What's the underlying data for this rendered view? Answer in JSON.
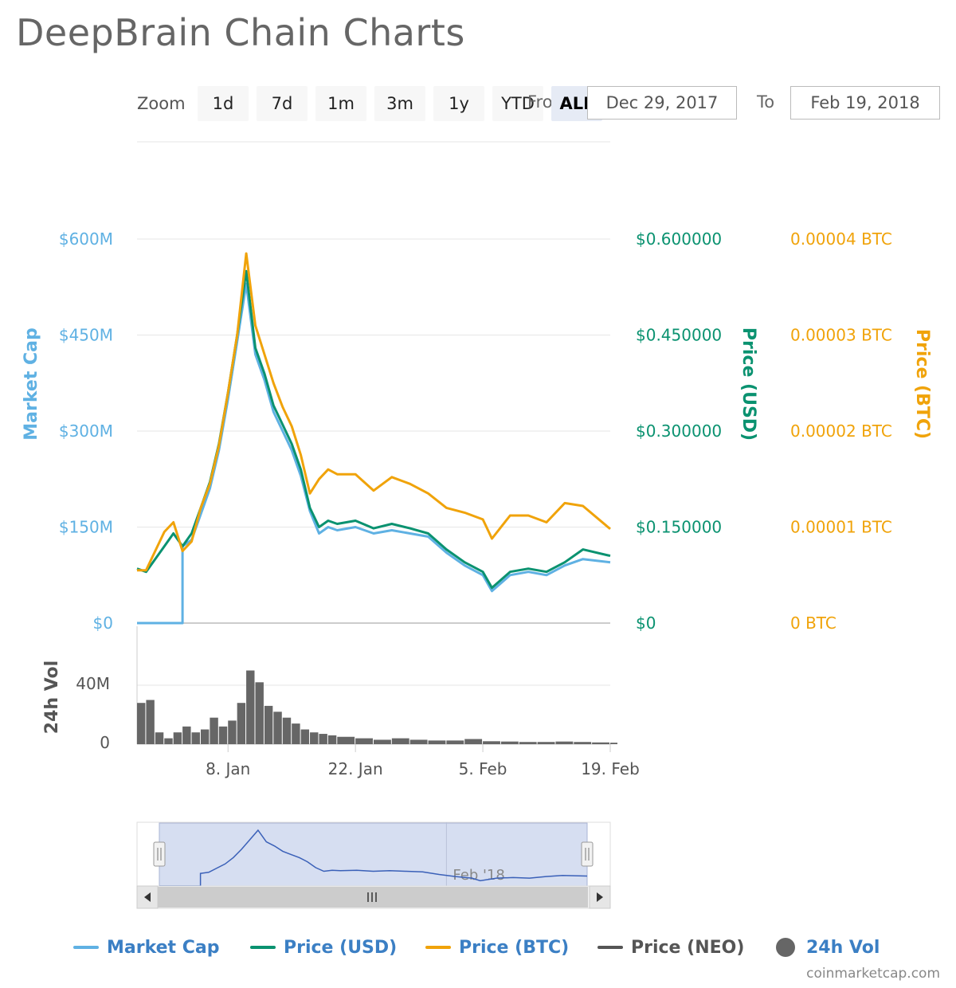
{
  "page": {
    "title": "DeepBrain Chain Charts"
  },
  "zoom": {
    "label": "Zoom",
    "buttons": [
      "1d",
      "7d",
      "1m",
      "3m",
      "1y",
      "YTD",
      "ALL"
    ],
    "active": "ALL"
  },
  "range": {
    "from_label": "From",
    "to_label": "To",
    "from_value": "Dec 29, 2017",
    "to_value": "Feb 19, 2018"
  },
  "legend": {
    "items": [
      {
        "name": "Market Cap",
        "color": "#5fb1e3",
        "marker": "line"
      },
      {
        "name": "Price (USD)",
        "color": "#0a9270",
        "marker": "line"
      },
      {
        "name": "Price (BTC)",
        "color": "#f0a30a",
        "marker": "line"
      },
      {
        "name": "Price (NEO)",
        "color": "#555555",
        "marker": "line"
      },
      {
        "name": "24h Vol",
        "color": "#666666",
        "marker": "dot"
      }
    ]
  },
  "credits": "coinmarketcap.com",
  "chart_data": {
    "type": "line",
    "x_range": [
      "2017-12-29",
      "2018-02-19"
    ],
    "x_ticks": [
      {
        "label": "8. Jan",
        "date": "2018-01-08"
      },
      {
        "label": "22. Jan",
        "date": "2018-01-22"
      },
      {
        "label": "5. Feb",
        "date": "2018-02-05"
      },
      {
        "label": "19. Feb",
        "date": "2018-02-19"
      }
    ],
    "axes": {
      "market_cap": {
        "title": "Market Cap",
        "ticks": [
          "$0",
          "$150M",
          "$300M",
          "$450M",
          "$600M"
        ],
        "range": [
          0,
          600000000
        ],
        "color": "#5fb1e3"
      },
      "price_usd": {
        "title": "Price (USD)",
        "ticks": [
          "$0",
          "$0.150000",
          "$0.300000",
          "$0.450000",
          "$0.600000"
        ],
        "range": [
          0,
          0.6
        ],
        "color": "#0a9270"
      },
      "price_btc": {
        "title": "Price (BTC)",
        "ticks": [
          "0 BTC",
          "0.00001 BTC",
          "0.00002 BTC",
          "0.00003 BTC",
          "0.00004 BTC"
        ],
        "range": [
          0,
          4e-05
        ],
        "color": "#f0a30a"
      },
      "volume": {
        "title": "24h Vol",
        "ticks": [
          "0",
          "40M"
        ],
        "range": [
          0,
          40000000
        ]
      }
    },
    "grid": true,
    "navigator": {
      "label": "Feb '18",
      "x_range": [
        "2017-12-29",
        "2018-02-19"
      ]
    },
    "series": [
      {
        "name": "Market Cap",
        "axis": "market_cap",
        "color": "#5fb1e3",
        "points": [
          [
            "2017-12-29",
            0
          ],
          [
            "2018-01-03",
            0
          ],
          [
            "2018-01-03",
            120000000
          ],
          [
            "2018-01-04",
            130000000
          ],
          [
            "2018-01-05",
            170000000
          ],
          [
            "2018-01-06",
            210000000
          ],
          [
            "2018-01-07",
            270000000
          ],
          [
            "2018-01-08",
            350000000
          ],
          [
            "2018-01-09",
            440000000
          ],
          [
            "2018-01-10",
            530000000
          ],
          [
            "2018-01-11",
            420000000
          ],
          [
            "2018-01-12",
            380000000
          ],
          [
            "2018-01-13",
            330000000
          ],
          [
            "2018-01-14",
            300000000
          ],
          [
            "2018-01-15",
            270000000
          ],
          [
            "2018-01-16",
            230000000
          ],
          [
            "2018-01-17",
            175000000
          ],
          [
            "2018-01-18",
            140000000
          ],
          [
            "2018-01-19",
            150000000
          ],
          [
            "2018-01-20",
            145000000
          ],
          [
            "2018-01-22",
            150000000
          ],
          [
            "2018-01-24",
            140000000
          ],
          [
            "2018-01-26",
            145000000
          ],
          [
            "2018-01-28",
            140000000
          ],
          [
            "2018-01-30",
            135000000
          ],
          [
            "2018-02-01",
            110000000
          ],
          [
            "2018-02-03",
            90000000
          ],
          [
            "2018-02-05",
            75000000
          ],
          [
            "2018-02-06",
            50000000
          ],
          [
            "2018-02-08",
            75000000
          ],
          [
            "2018-02-10",
            80000000
          ],
          [
            "2018-02-12",
            75000000
          ],
          [
            "2018-02-14",
            90000000
          ],
          [
            "2018-02-16",
            100000000
          ],
          [
            "2018-02-19",
            95000000
          ]
        ]
      },
      {
        "name": "Price (USD)",
        "axis": "price_usd",
        "color": "#0a9270",
        "points": [
          [
            "2017-12-29",
            0.085
          ],
          [
            "2017-12-30",
            0.08
          ],
          [
            "2017-12-31",
            0.1
          ],
          [
            "2018-01-01",
            0.12
          ],
          [
            "2018-01-02",
            0.14
          ],
          [
            "2018-01-03",
            0.12
          ],
          [
            "2018-01-04",
            0.14
          ],
          [
            "2018-01-05",
            0.18
          ],
          [
            "2018-01-06",
            0.22
          ],
          [
            "2018-01-07",
            0.28
          ],
          [
            "2018-01-08",
            0.36
          ],
          [
            "2018-01-09",
            0.45
          ],
          [
            "2018-01-10",
            0.55
          ],
          [
            "2018-01-11",
            0.43
          ],
          [
            "2018-01-12",
            0.39
          ],
          [
            "2018-01-13",
            0.34
          ],
          [
            "2018-01-14",
            0.31
          ],
          [
            "2018-01-15",
            0.28
          ],
          [
            "2018-01-16",
            0.24
          ],
          [
            "2018-01-17",
            0.18
          ],
          [
            "2018-01-18",
            0.15
          ],
          [
            "2018-01-19",
            0.16
          ],
          [
            "2018-01-20",
            0.155
          ],
          [
            "2018-01-22",
            0.16
          ],
          [
            "2018-01-24",
            0.148
          ],
          [
            "2018-01-26",
            0.155
          ],
          [
            "2018-01-28",
            0.148
          ],
          [
            "2018-01-30",
            0.14
          ],
          [
            "2018-02-01",
            0.115
          ],
          [
            "2018-02-03",
            0.095
          ],
          [
            "2018-02-05",
            0.08
          ],
          [
            "2018-02-06",
            0.055
          ],
          [
            "2018-02-08",
            0.08
          ],
          [
            "2018-02-10",
            0.085
          ],
          [
            "2018-02-12",
            0.08
          ],
          [
            "2018-02-14",
            0.095
          ],
          [
            "2018-02-16",
            0.115
          ],
          [
            "2018-02-19",
            0.105
          ]
        ]
      },
      {
        "name": "Price (BTC)",
        "axis": "price_btc",
        "color": "#f0a30a",
        "points": [
          [
            "2017-12-29",
            5.5e-06
          ],
          [
            "2017-12-30",
            5.5e-06
          ],
          [
            "2017-12-31",
            7.5e-06
          ],
          [
            "2018-01-01",
            9.5e-06
          ],
          [
            "2018-01-02",
            1.05e-05
          ],
          [
            "2018-01-03",
            7.5e-06
          ],
          [
            "2018-01-04",
            8.5e-06
          ],
          [
            "2018-01-05",
            1.2e-05
          ],
          [
            "2018-01-06",
            1.45e-05
          ],
          [
            "2018-01-07",
            1.85e-05
          ],
          [
            "2018-01-08",
            2.4e-05
          ],
          [
            "2018-01-09",
            3e-05
          ],
          [
            "2018-01-10",
            3.85e-05
          ],
          [
            "2018-01-11",
            3.1e-05
          ],
          [
            "2018-01-12",
            2.8e-05
          ],
          [
            "2018-01-13",
            2.5e-05
          ],
          [
            "2018-01-14",
            2.25e-05
          ],
          [
            "2018-01-15",
            2.05e-05
          ],
          [
            "2018-01-16",
            1.75e-05
          ],
          [
            "2018-01-17",
            1.35e-05
          ],
          [
            "2018-01-18",
            1.5e-05
          ],
          [
            "2018-01-19",
            1.6e-05
          ],
          [
            "2018-01-20",
            1.55e-05
          ],
          [
            "2018-01-22",
            1.55e-05
          ],
          [
            "2018-01-24",
            1.38e-05
          ],
          [
            "2018-01-26",
            1.52e-05
          ],
          [
            "2018-01-28",
            1.45e-05
          ],
          [
            "2018-01-30",
            1.35e-05
          ],
          [
            "2018-02-01",
            1.2e-05
          ],
          [
            "2018-02-03",
            1.15e-05
          ],
          [
            "2018-02-05",
            1.08e-05
          ],
          [
            "2018-02-06",
            8.8e-06
          ],
          [
            "2018-02-08",
            1.12e-05
          ],
          [
            "2018-02-10",
            1.12e-05
          ],
          [
            "2018-02-12",
            1.05e-05
          ],
          [
            "2018-02-14",
            1.25e-05
          ],
          [
            "2018-02-16",
            1.22e-05
          ],
          [
            "2018-02-19",
            9.8e-06
          ]
        ]
      },
      {
        "name": "24h Vol",
        "axis": "volume",
        "color": "#666666",
        "points": [
          [
            "2017-12-29",
            28000000
          ],
          [
            "2017-12-30",
            30000000
          ],
          [
            "2017-12-31",
            8000000
          ],
          [
            "2018-01-01",
            4000000
          ],
          [
            "2018-01-02",
            8000000
          ],
          [
            "2018-01-03",
            12000000
          ],
          [
            "2018-01-04",
            8000000
          ],
          [
            "2018-01-05",
            10000000
          ],
          [
            "2018-01-06",
            18000000
          ],
          [
            "2018-01-07",
            12000000
          ],
          [
            "2018-01-08",
            16000000
          ],
          [
            "2018-01-09",
            28000000
          ],
          [
            "2018-01-10",
            50000000
          ],
          [
            "2018-01-11",
            42000000
          ],
          [
            "2018-01-12",
            26000000
          ],
          [
            "2018-01-13",
            22000000
          ],
          [
            "2018-01-14",
            18000000
          ],
          [
            "2018-01-15",
            14000000
          ],
          [
            "2018-01-16",
            10000000
          ],
          [
            "2018-01-17",
            8000000
          ],
          [
            "2018-01-18",
            7000000
          ],
          [
            "2018-01-19",
            6000000
          ],
          [
            "2018-01-20",
            5000000
          ],
          [
            "2018-01-22",
            4000000
          ],
          [
            "2018-01-24",
            3000000
          ],
          [
            "2018-01-26",
            4000000
          ],
          [
            "2018-01-28",
            3000000
          ],
          [
            "2018-01-30",
            2500000
          ],
          [
            "2018-02-01",
            2500000
          ],
          [
            "2018-02-03",
            3500000
          ],
          [
            "2018-02-05",
            2000000
          ],
          [
            "2018-02-07",
            1800000
          ],
          [
            "2018-02-09",
            1500000
          ],
          [
            "2018-02-11",
            1500000
          ],
          [
            "2018-02-13",
            1800000
          ],
          [
            "2018-02-15",
            1500000
          ],
          [
            "2018-02-17",
            1200000
          ],
          [
            "2018-02-19",
            1000000
          ]
        ]
      }
    ]
  }
}
